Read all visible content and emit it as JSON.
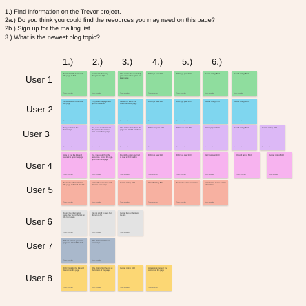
{
  "tasks": [
    "1.) Find information on the Trevor project.",
    "2a.) Do you think you could find the resources you may need on this page?",
    "2b.) Sign up for the mailing list",
    "3.) What is the newest blog topic?"
  ],
  "columns": [
    "1.)",
    "2.)",
    "3.)",
    "4.)",
    "5.)",
    "6.)"
  ],
  "users": [
    "User 1",
    "User 2",
    "User 3",
    "User 4",
    "User 5",
    "User 6",
    "User 7",
    "User 8"
  ],
  "notes": {
    "u1": [
      {
        "text": "Scrolled to the bottom of the page to find",
        "author": "Team member"
      },
      {
        "text": "Just Read what they thought was right",
        "author": "Team member"
      },
      {
        "text": "Was unsure if it would help gave some ideas gone for learn more",
        "author": "Team member"
      },
      {
        "text": "Didn't go past 3/10",
        "author": "Team member"
      },
      {
        "text": "Didn't go past 3/10",
        "author": "Team member"
      },
      {
        "text": "Overall rating: 8/10",
        "author": "Team member"
      },
      {
        "text": "Overall rating: 8/10",
        "author": "Team member"
      }
    ],
    "u2": [
      {
        "text": "Scrolled to the bottom of the page",
        "author": "Team member"
      },
      {
        "text": "They liked the page and got the resources",
        "author": "Team member"
      },
      {
        "text": "Clicked on a link and found the event page",
        "author": "Team member"
      },
      {
        "text": "Didn't go past 3/10",
        "author": "Team member"
      },
      {
        "text": "Didn't go past 3/10",
        "author": "Team member"
      },
      {
        "text": "Overall rating: 7/10",
        "author": "Team member"
      },
      {
        "text": "Overall rating: 8/10",
        "author": "Team member"
      }
    ],
    "u3": [
      {
        "text": "Easy to find on the homepage",
        "author": "Team member"
      },
      {
        "text": "Yes, if we needed to use the options.\n\nFound the form on the homepage",
        "author": "Team member"
      },
      {
        "text": "Was able to find where the page was.\n\nDidn't scroll far",
        "author": "Team member"
      },
      {
        "text": "Didn't use past 3/10",
        "author": "Team member"
      },
      {
        "text": "Didn't use past 3/10",
        "author": "Team member"
      },
      {
        "text": "Didn't go past 3/10",
        "author": "Team member"
      },
      {
        "text": "Overall rating: 6/10",
        "author": "Team member"
      },
      {
        "text": "Overall rating: 7/10",
        "author": "Team member"
      }
    ],
    "u4": [
      {
        "text": "Able to find the link and wanted to go to the page",
        "author": "Team member"
      },
      {
        "text": "Yes, they could find the resources.\n\nFound the sign-up on the homepage",
        "author": "Team member"
      },
      {
        "text": "Found the option but had to read to find the link",
        "author": "Team member"
      },
      {
        "text": "Didn't go past 3/10",
        "author": "Team member"
      },
      {
        "text": "Didn't go past 3/10",
        "author": "Team member"
      },
      {
        "text": "Didn't go past 3/10",
        "author": "Team member"
      },
      {
        "text": "Overall rating: 6/10",
        "author": "Team member"
      },
      {
        "text": "Overall rating: 6/10",
        "author": "Team member"
      }
    ],
    "u5": [
      {
        "text": "Found the information on the page and read about it",
        "author": "Team member"
      },
      {
        "text": "Found the resources and also the main page",
        "author": "Team member"
      },
      {
        "text": "Overall rating: 5/10",
        "author": "Team member"
      },
      {
        "text": "Overall rating: 5/10",
        "author": "Team member"
      },
      {
        "text": "Found the same resources",
        "author": "Team member"
      },
      {
        "text": "Found more on the overall information",
        "author": "Team member"
      }
    ],
    "u6": [
      {
        "text": "Found the information once they found the link on the homepage",
        "author": "Team member"
      },
      {
        "text": "Did not scroll to page but did not go far",
        "author": "Team member"
      },
      {
        "text": "Overall they understood the site",
        "author": "Team member"
      }
    ],
    "u7": [
      {
        "text": "Did not want to go to the page but did find the link",
        "author": "Team member"
      },
      {
        "text": "Was able to look at the homepage",
        "author": "Team member"
      }
    ],
    "u8": [
      {
        "text": "Didn't look for the link and found it on the page",
        "author": "Team member"
      },
      {
        "text": "Was able to find the link at the bottom of the page",
        "author": "Team member"
      },
      {
        "text": "Overall rating: 5/10",
        "author": "Team member"
      },
      {
        "text": "Able to look through the content on the page",
        "author": "Team member"
      }
    ]
  }
}
